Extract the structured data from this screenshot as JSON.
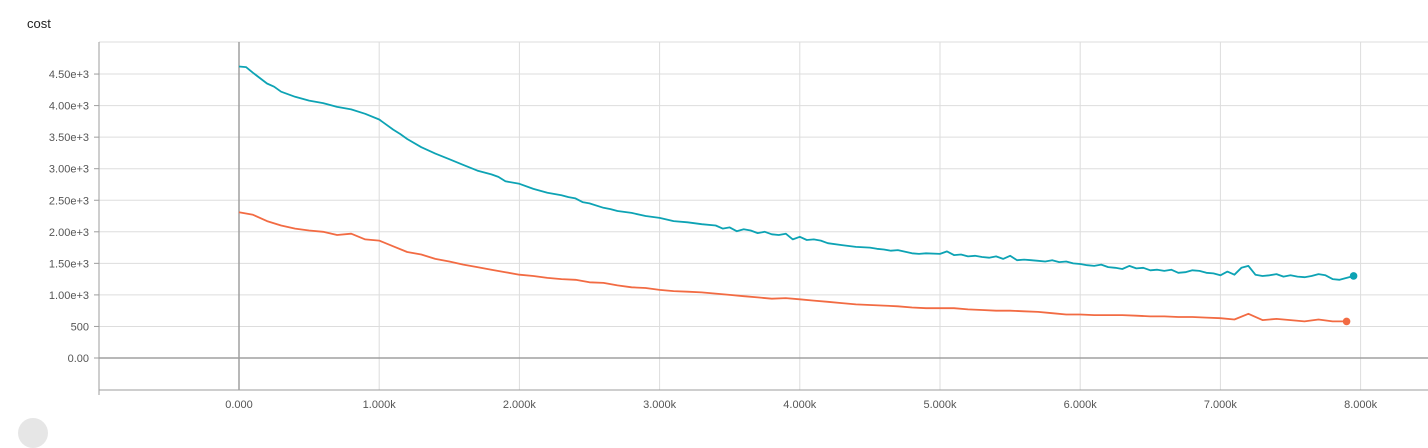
{
  "chart_data": {
    "type": "line",
    "title": "cost",
    "xlabel": "",
    "ylabel": "",
    "xlim": [
      -1000,
      8500
    ],
    "ylim": [
      -500,
      5000
    ],
    "x_ticks": [
      0,
      1000,
      2000,
      3000,
      4000,
      5000,
      6000,
      7000,
      8000
    ],
    "x_tick_labels": [
      "0.000",
      "1.000k",
      "2.000k",
      "3.000k",
      "4.000k",
      "5.000k",
      "6.000k",
      "7.000k",
      "8.000k"
    ],
    "y_ticks": [
      0,
      500,
      1000,
      1500,
      2000,
      2500,
      3000,
      3500,
      4000,
      4500
    ],
    "y_tick_labels": [
      "0.00",
      "500",
      "1.00e+3",
      "1.50e+3",
      "2.00e+3",
      "2.50e+3",
      "3.00e+3",
      "3.50e+3",
      "4.00e+3",
      "4.50e+3"
    ],
    "grid": true,
    "series": [
      {
        "color": "#0da3b4",
        "x": [
          0,
          50,
          100,
          200,
          250,
          300,
          400,
          500,
          600,
          700,
          800,
          900,
          1000,
          1100,
          1150,
          1200,
          1300,
          1400,
          1500,
          1600,
          1700,
          1800,
          1850,
          1900,
          2000,
          2100,
          2200,
          2300,
          2350,
          2400,
          2450,
          2500,
          2600,
          2650,
          2700,
          2800,
          2900,
          3000,
          3100,
          3200,
          3300,
          3400,
          3450,
          3500,
          3550,
          3600,
          3650,
          3700,
          3750,
          3800,
          3850,
          3900,
          3950,
          4000,
          4050,
          4100,
          4150,
          4200,
          4300,
          4400,
          4500,
          4550,
          4600,
          4650,
          4700,
          4800,
          4850,
          4900,
          5000,
          5050,
          5100,
          5150,
          5200,
          5250,
          5300,
          5350,
          5400,
          5450,
          5500,
          5550,
          5600,
          5650,
          5700,
          5750,
          5800,
          5850,
          5900,
          5950,
          6000,
          6050,
          6100,
          6150,
          6200,
          6250,
          6300,
          6350,
          6400,
          6450,
          6500,
          6550,
          6600,
          6650,
          6700,
          6750,
          6800,
          6850,
          6900,
          6950,
          7000,
          7050,
          7100,
          7150,
          7200,
          7250,
          7300,
          7350,
          7400,
          7450,
          7500,
          7550,
          7600,
          7650,
          7700,
          7750,
          7800,
          7850,
          7900,
          7950
        ],
        "y": [
          4620,
          4610,
          4520,
          4350,
          4300,
          4220,
          4140,
          4080,
          4040,
          3980,
          3940,
          3870,
          3780,
          3620,
          3550,
          3470,
          3340,
          3240,
          3150,
          3060,
          2970,
          2910,
          2870,
          2800,
          2760,
          2680,
          2620,
          2580,
          2550,
          2530,
          2470,
          2450,
          2380,
          2360,
          2330,
          2300,
          2250,
          2220,
          2170,
          2150,
          2120,
          2100,
          2050,
          2070,
          2010,
          2040,
          2020,
          1980,
          2000,
          1960,
          1950,
          1970,
          1880,
          1920,
          1870,
          1880,
          1860,
          1820,
          1790,
          1760,
          1750,
          1730,
          1720,
          1700,
          1710,
          1660,
          1650,
          1660,
          1650,
          1690,
          1630,
          1640,
          1610,
          1620,
          1600,
          1590,
          1610,
          1570,
          1620,
          1550,
          1560,
          1550,
          1540,
          1530,
          1550,
          1520,
          1530,
          1500,
          1490,
          1470,
          1460,
          1480,
          1440,
          1430,
          1410,
          1460,
          1420,
          1430,
          1390,
          1400,
          1380,
          1400,
          1350,
          1360,
          1390,
          1380,
          1350,
          1340,
          1310,
          1370,
          1320,
          1430,
          1460,
          1320,
          1300,
          1310,
          1330,
          1290,
          1310,
          1290,
          1280,
          1300,
          1330,
          1310,
          1250,
          1240,
          1270,
          1300
        ]
      },
      {
        "color": "#f26b43",
        "x": [
          0,
          100,
          200,
          300,
          400,
          500,
          600,
          700,
          800,
          900,
          1000,
          1100,
          1200,
          1300,
          1400,
          1500,
          1600,
          1700,
          1800,
          1900,
          2000,
          2100,
          2200,
          2300,
          2400,
          2500,
          2600,
          2700,
          2800,
          2900,
          3000,
          3100,
          3200,
          3300,
          3400,
          3500,
          3600,
          3700,
          3800,
          3900,
          4000,
          4100,
          4200,
          4300,
          4400,
          4500,
          4600,
          4700,
          4800,
          4900,
          5000,
          5100,
          5200,
          5300,
          5400,
          5500,
          5600,
          5700,
          5800,
          5900,
          6000,
          6100,
          6200,
          6300,
          6400,
          6500,
          6600,
          6700,
          6800,
          6900,
          7000,
          7100,
          7200,
          7300,
          7400,
          7500,
          7600,
          7700,
          7800,
          7900
        ],
        "y": [
          2310,
          2270,
          2170,
          2100,
          2050,
          2020,
          2000,
          1950,
          1970,
          1880,
          1860,
          1770,
          1680,
          1640,
          1570,
          1530,
          1480,
          1440,
          1400,
          1360,
          1320,
          1300,
          1270,
          1250,
          1240,
          1200,
          1190,
          1150,
          1120,
          1110,
          1080,
          1060,
          1050,
          1040,
          1020,
          1000,
          980,
          960,
          940,
          950,
          930,
          910,
          890,
          870,
          850,
          840,
          830,
          820,
          800,
          790,
          790,
          790,
          770,
          760,
          750,
          750,
          740,
          730,
          710,
          690,
          690,
          680,
          680,
          680,
          670,
          660,
          660,
          650,
          650,
          640,
          630,
          610,
          700,
          600,
          620,
          600,
          580,
          610,
          580,
          580
        ]
      }
    ]
  }
}
